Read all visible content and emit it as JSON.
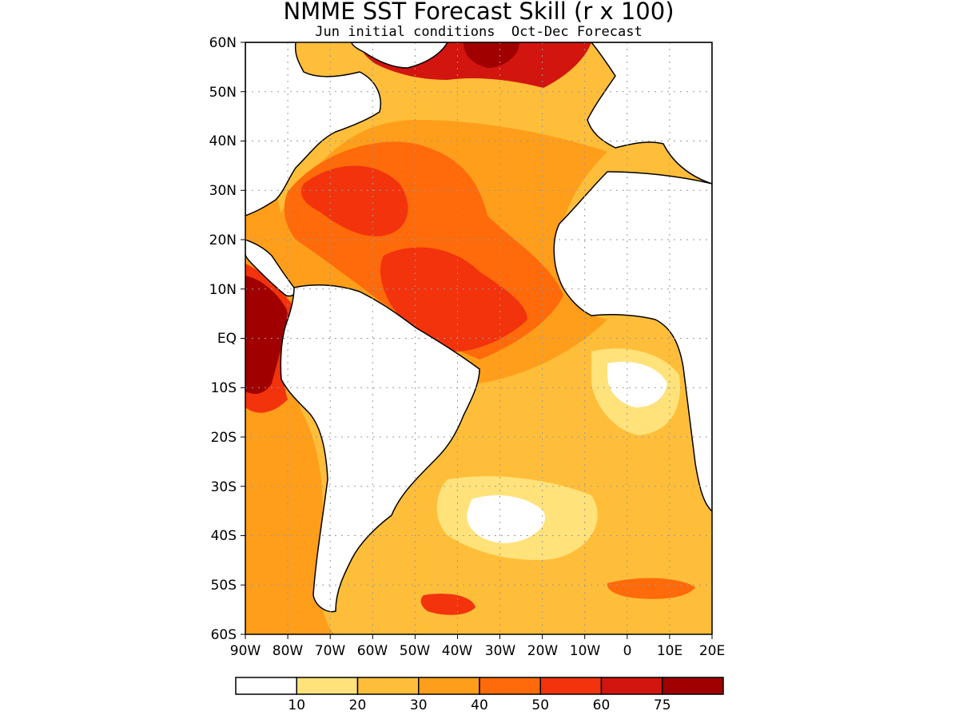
{
  "map": {
    "title": "NMME SST Forecast Skill (r x 100)",
    "subtitle": "Jun initial conditions  Oct-Dec Forecast",
    "lat_range": [
      -60,
      60
    ],
    "lon_range": [
      -90,
      20
    ],
    "lat_labels": [
      "60N",
      "50N",
      "40N",
      "30N",
      "20N",
      "10N",
      "EQ",
      "10S",
      "20S",
      "30S",
      "40S",
      "50S",
      "60S"
    ],
    "lon_labels": [
      "90W",
      "80W",
      "70W",
      "60W",
      "50W",
      "40W",
      "30W",
      "20W",
      "10W",
      "0",
      "10E",
      "20E"
    ],
    "grid": "dotted"
  },
  "colorbar": {
    "colors": [
      "#ffffff",
      "#ffe27a",
      "#ffbe3a",
      "#ff9e1a",
      "#ff6a0a",
      "#f2330c",
      "#d2150e",
      "#a00000"
    ],
    "labels": [
      "10",
      "20",
      "30",
      "40",
      "50",
      "60",
      "75"
    ]
  }
}
